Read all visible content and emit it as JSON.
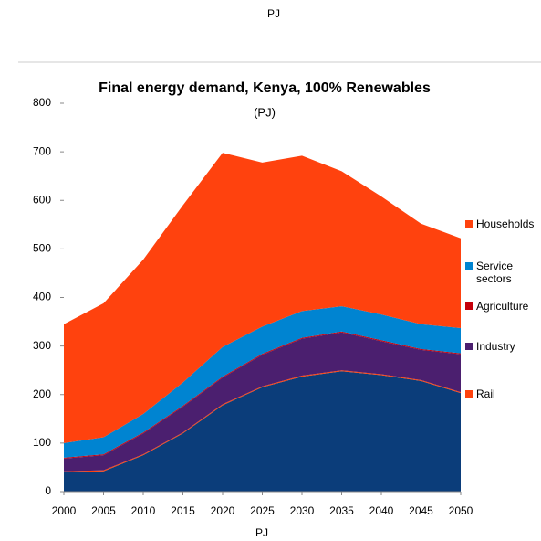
{
  "header": "PJ",
  "chart_data": {
    "type": "stacked_area",
    "title": "Final energy demand, Kenya, 100% Renewables",
    "subtitle": "(PJ)",
    "xlabel": "PJ",
    "x": [
      2000,
      2005,
      2010,
      2015,
      2020,
      2025,
      2030,
      2035,
      2040,
      2045,
      2050
    ],
    "xlim": [
      2000,
      2050
    ],
    "ylim": [
      0,
      800
    ],
    "yticks": [
      0,
      100,
      200,
      300,
      400,
      500,
      600,
      700,
      800
    ],
    "series": [
      {
        "color": "#0b3d7a",
        "values": [
          40,
          42,
          75,
          120,
          178,
          215,
          237,
          248,
          240,
          228,
          203
        ]
      },
      {
        "name": "Rail",
        "color": "#ff420e",
        "values": [
          2,
          2,
          2,
          2,
          2,
          2,
          2,
          2,
          2,
          2,
          2
        ]
      },
      {
        "name": "Industry",
        "color": "#4b1f6f",
        "values": [
          26,
          31,
          43,
          53,
          55,
          65,
          76,
          78,
          68,
          62,
          78
        ]
      },
      {
        "name": "Agriculture",
        "color": "#c5000b",
        "values": [
          2,
          2,
          2,
          2,
          2,
          2,
          2,
          2,
          2,
          2,
          2
        ]
      },
      {
        "name": "Service sectors",
        "color": "#0084d1",
        "values": [
          30,
          35,
          38,
          48,
          61,
          56,
          55,
          52,
          53,
          51,
          52
        ]
      },
      {
        "name": "Households",
        "color": "#ff420e",
        "values": [
          245,
          276,
          318,
          365,
          400,
          338,
          320,
          278,
          243,
          207,
          185
        ]
      }
    ]
  }
}
